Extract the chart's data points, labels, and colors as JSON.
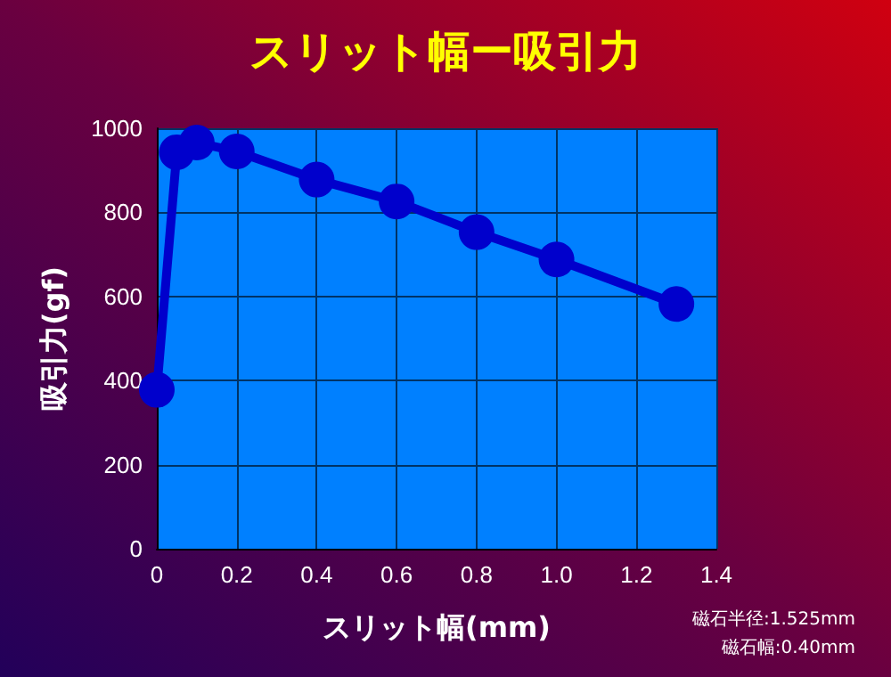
{
  "chart_data": {
    "type": "line",
    "title": "スリット幅ー吸引力",
    "xlabel": "スリット幅(mm)",
    "ylabel": "吸引力(gf)",
    "x": [
      0,
      0.05,
      0.1,
      0.2,
      0.4,
      0.6,
      0.8,
      1.0,
      1.3
    ],
    "values": [
      378,
      943,
      966,
      945,
      878,
      826,
      753,
      688,
      582
    ],
    "color": "#0000cc",
    "xlim": [
      0,
      1.4
    ],
    "xticks": [
      0,
      0.2,
      0.4,
      0.6,
      0.8,
      {
        "value": 1,
        "label": "1.0"
      },
      1.2,
      1.4
    ],
    "ylim": [
      0,
      1000
    ],
    "yticks": [
      0,
      200,
      400,
      600,
      800,
      1000
    ],
    "grid": true,
    "marker": "circle",
    "line_style": "solid",
    "annotations": [
      "磁石半径:1.525mm",
      "磁石幅:0.40mm"
    ]
  }
}
